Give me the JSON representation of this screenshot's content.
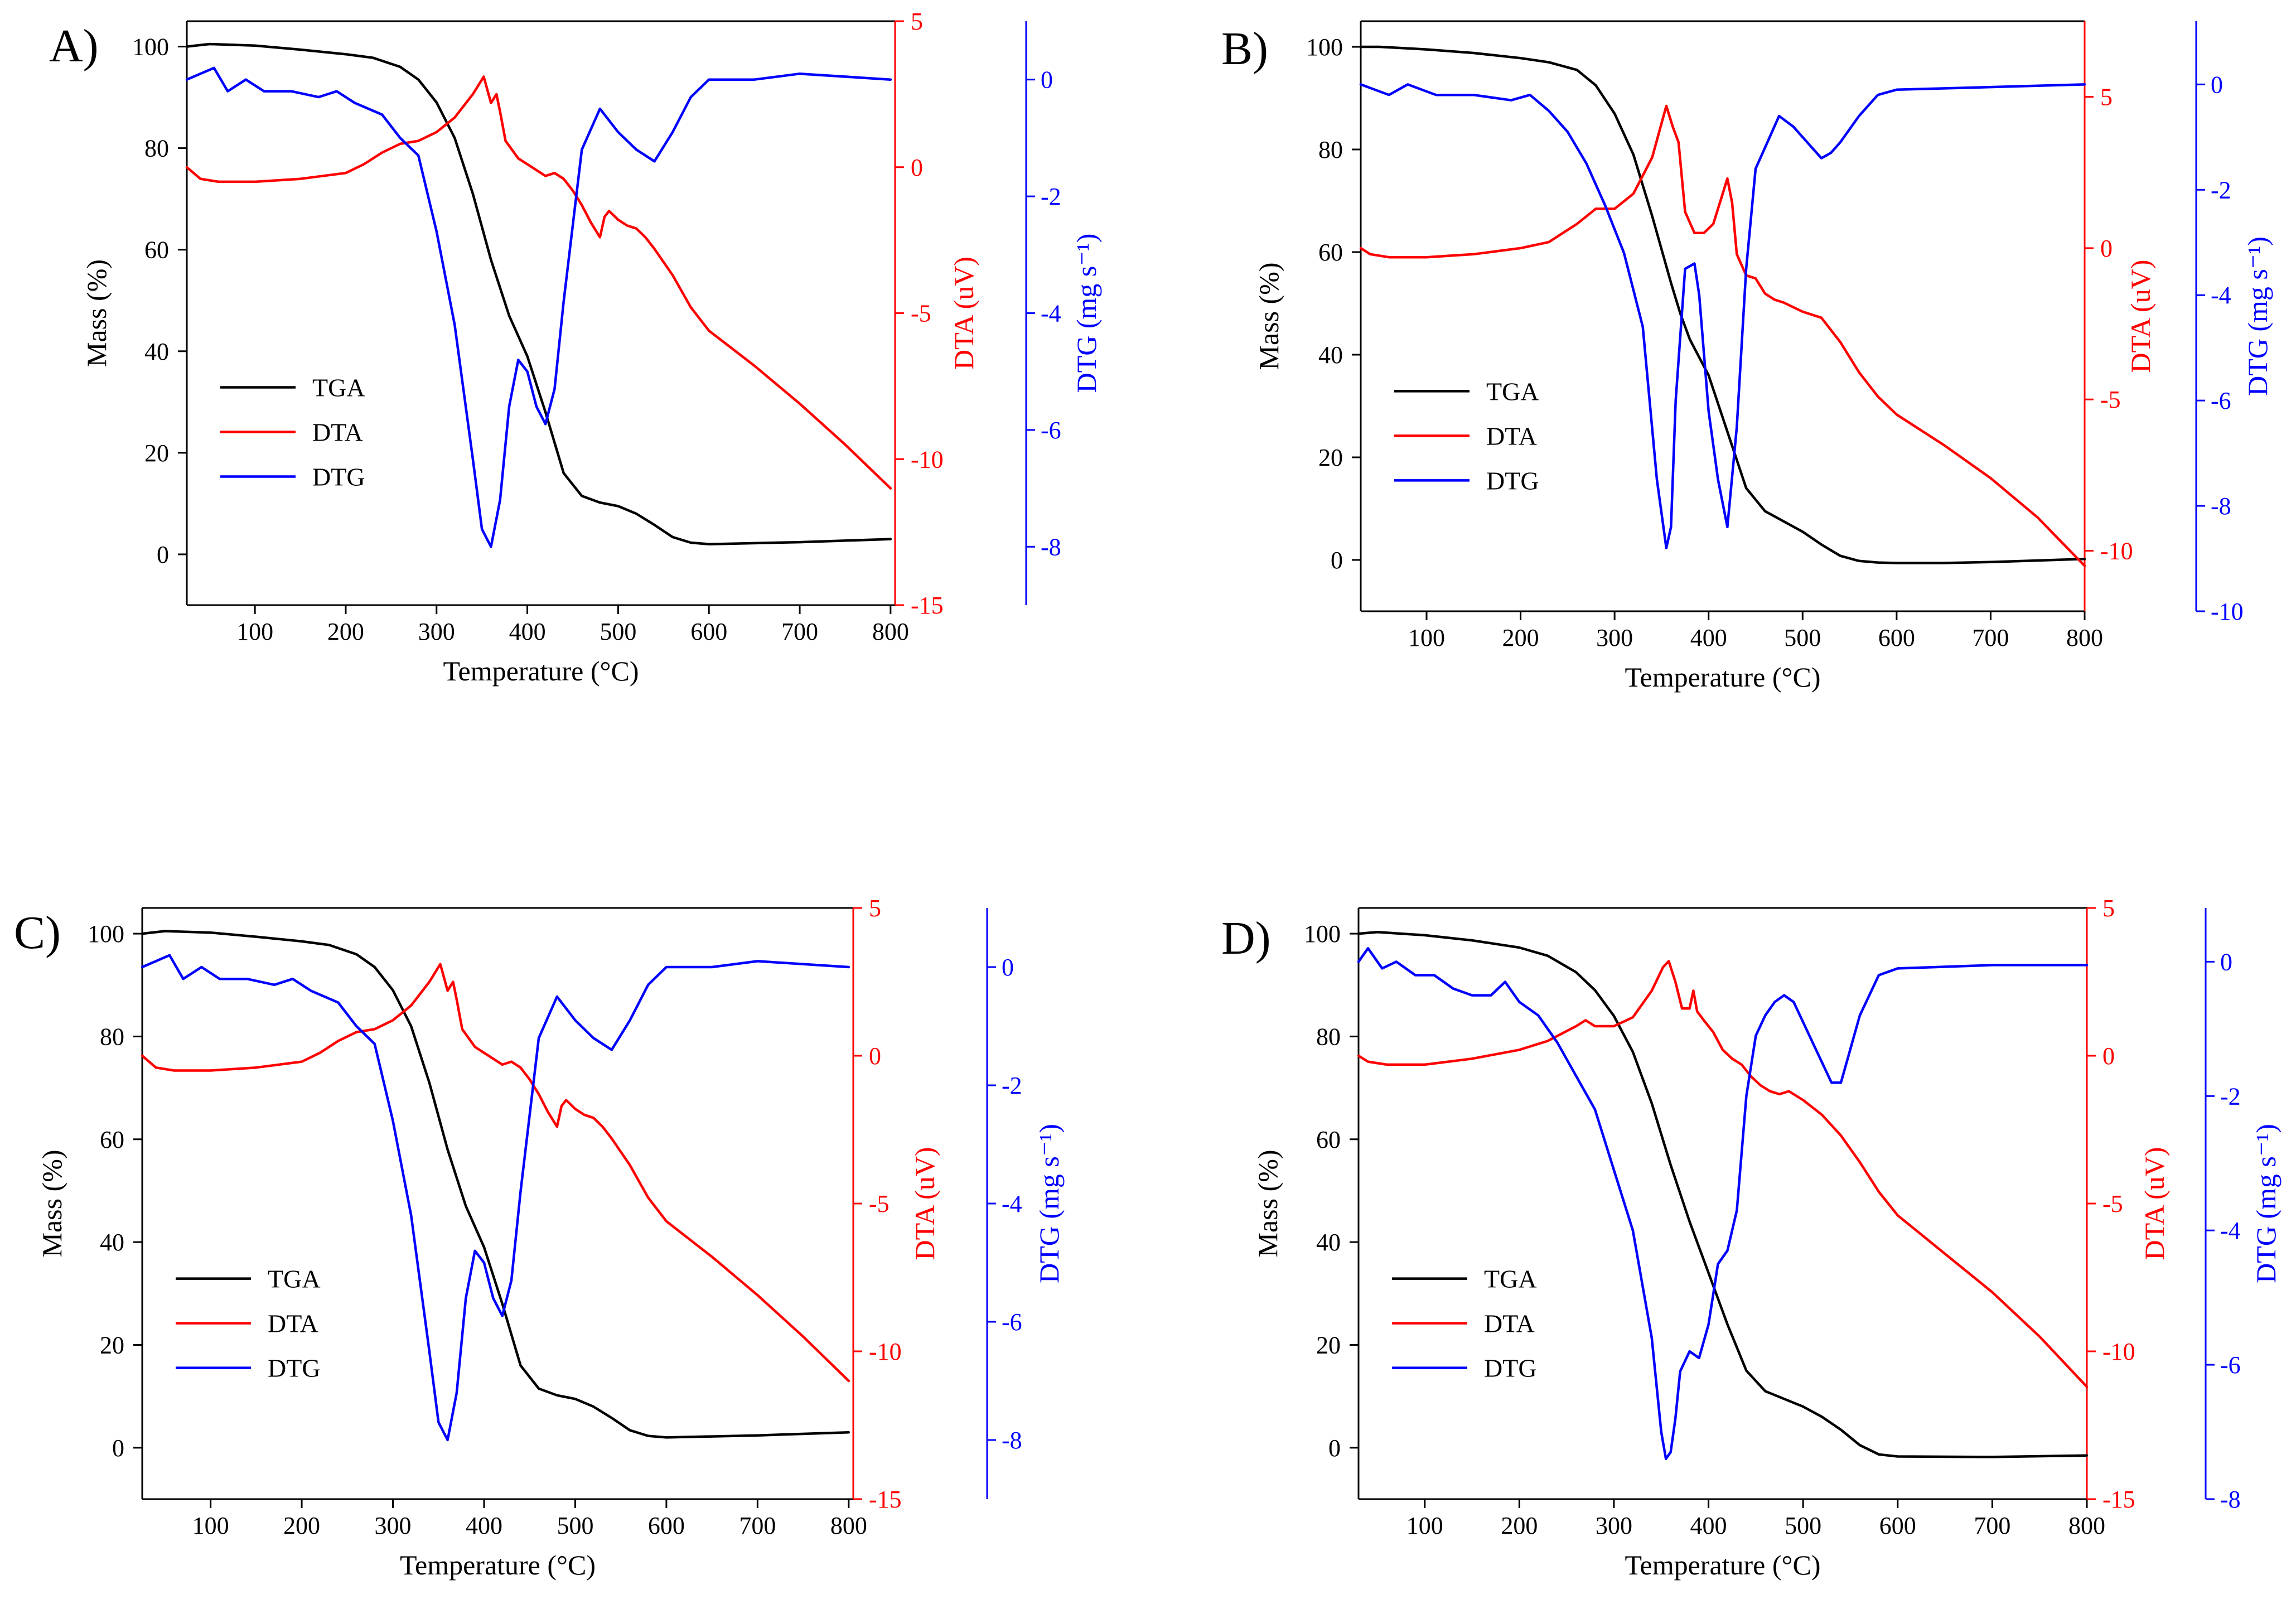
{
  "figure": {
    "colors": {
      "tga": "#000000",
      "dta": "#ff0000",
      "dtg": "#0000ff"
    }
  },
  "chart_data": [
    {
      "type": "line",
      "panel_label": "A)",
      "xlabel": "Temperature (°C)",
      "ylabel_left": "Mass (%)",
      "ylabel_right1": "DTA (uV)",
      "ylabel_right2": "DTG (mg s⁻¹)",
      "xlim": [
        25,
        805
      ],
      "xticks": [
        100,
        200,
        300,
        400,
        500,
        600,
        700,
        800
      ],
      "mass_lim": [
        -10,
        105
      ],
      "mass_ticks": [
        0,
        20,
        40,
        60,
        80,
        100
      ],
      "dta_lim": [
        -15,
        5
      ],
      "dta_ticks": [
        -15,
        -10,
        -5,
        0,
        5
      ],
      "dtg_lim": [
        -9,
        1
      ],
      "dtg_ticks": [
        -8,
        -6,
        -4,
        -2,
        0
      ],
      "legend": [
        "TGA",
        "DTA",
        "DTG"
      ],
      "series": [
        {
          "name": "TGA",
          "axis": "mass",
          "x": [
            25,
            50,
            100,
            150,
            200,
            230,
            260,
            280,
            300,
            320,
            340,
            360,
            380,
            400,
            420,
            440,
            460,
            480,
            500,
            520,
            540,
            560,
            580,
            600,
            700,
            800
          ],
          "y": [
            100,
            100.5,
            100.2,
            99.4,
            98.5,
            97.8,
            96,
            93.5,
            89,
            82,
            71,
            58,
            47,
            39,
            28,
            16,
            11.5,
            10.2,
            9.5,
            8,
            5.8,
            3.4,
            2.3,
            2,
            2.4,
            3
          ]
        },
        {
          "name": "DTA",
          "axis": "dta",
          "x": [
            25,
            40,
            60,
            100,
            150,
            200,
            220,
            240,
            260,
            280,
            300,
            320,
            340,
            352,
            360,
            366,
            370,
            376,
            390,
            410,
            420,
            430,
            440,
            450,
            460,
            470,
            480,
            485,
            490,
            500,
            510,
            520,
            530,
            540,
            560,
            580,
            600,
            650,
            700,
            750,
            800
          ],
          "y": [
            0,
            -0.4,
            -0.5,
            -0.5,
            -0.4,
            -0.2,
            0.1,
            0.5,
            0.8,
            0.9,
            1.2,
            1.7,
            2.5,
            3.1,
            2.2,
            2.5,
            1.9,
            0.9,
            0.3,
            -0.1,
            -0.3,
            -0.2,
            -0.4,
            -0.8,
            -1.3,
            -1.9,
            -2.4,
            -1.7,
            -1.5,
            -1.8,
            -2,
            -2.1,
            -2.4,
            -2.8,
            -3.7,
            -4.8,
            -5.6,
            -6.8,
            -8.1,
            -9.5,
            -11
          ]
        },
        {
          "name": "DTG",
          "axis": "dtg",
          "x": [
            25,
            40,
            55,
            70,
            90,
            110,
            140,
            170,
            190,
            210,
            240,
            260,
            280,
            300,
            320,
            340,
            350,
            360,
            370,
            380,
            390,
            400,
            410,
            420,
            430,
            440,
            460,
            480,
            500,
            520,
            540,
            560,
            580,
            600,
            650,
            700,
            800
          ],
          "y": [
            0,
            0.1,
            0.2,
            -0.2,
            0,
            -0.2,
            -0.2,
            -0.3,
            -0.2,
            -0.4,
            -0.6,
            -1,
            -1.3,
            -2.6,
            -4.2,
            -6.5,
            -7.7,
            -8,
            -7.2,
            -5.6,
            -4.8,
            -5,
            -5.6,
            -5.9,
            -5.3,
            -3.8,
            -1.2,
            -0.5,
            -0.9,
            -1.2,
            -1.4,
            -0.9,
            -0.3,
            0,
            0,
            0.1,
            0
          ]
        }
      ]
    },
    {
      "type": "line",
      "panel_label": "B)",
      "xlabel": "Temperature (°C)",
      "ylabel_left": "Mass (%)",
      "ylabel_right1": "DTA (uV)",
      "ylabel_right2": "DTG (mg s⁻¹)",
      "xlim": [
        30,
        800
      ],
      "xticks": [
        100,
        200,
        300,
        400,
        500,
        600,
        700,
        800
      ],
      "mass_lim": [
        -10,
        105
      ],
      "mass_ticks": [
        0,
        20,
        40,
        60,
        80,
        100
      ],
      "dta_lim": [
        -12,
        7.5
      ],
      "dta_ticks": [
        -10,
        -5,
        0,
        5
      ],
      "dtg_lim": [
        -10,
        1.2
      ],
      "dtg_ticks": [
        -10,
        -8,
        -6,
        -4,
        -2,
        0
      ],
      "legend": [
        "TGA",
        "DTA",
        "DTG"
      ],
      "series": [
        {
          "name": "TGA",
          "axis": "mass",
          "x": [
            30,
            50,
            100,
            150,
            200,
            230,
            260,
            280,
            300,
            320,
            340,
            360,
            370,
            380,
            400,
            420,
            440,
            460,
            480,
            500,
            520,
            540,
            560,
            580,
            600,
            650,
            700,
            800
          ],
          "y": [
            100,
            100,
            99.5,
            98.8,
            97.8,
            97,
            95.5,
            92.5,
            87,
            79,
            67,
            54,
            48,
            43,
            36,
            25,
            14,
            9.5,
            7.5,
            5.5,
            3,
            0.8,
            -0.2,
            -0.5,
            -0.6,
            -0.6,
            -0.4,
            0.2
          ]
        },
        {
          "name": "DTA",
          "axis": "dta",
          "x": [
            30,
            40,
            60,
            100,
            150,
            200,
            230,
            260,
            280,
            300,
            320,
            340,
            355,
            362,
            368,
            375,
            385,
            395,
            405,
            415,
            420,
            425,
            430,
            440,
            450,
            460,
            470,
            480,
            500,
            520,
            540,
            560,
            580,
            600,
            650,
            700,
            750,
            800
          ],
          "y": [
            0,
            -0.2,
            -0.3,
            -0.3,
            -0.2,
            0,
            0.2,
            0.8,
            1.3,
            1.3,
            1.8,
            3,
            4.7,
            4,
            3.5,
            1.2,
            0.5,
            0.5,
            0.8,
            1.8,
            2.3,
            1.5,
            -0.2,
            -0.9,
            -1,
            -1.5,
            -1.7,
            -1.8,
            -2.1,
            -2.3,
            -3.1,
            -4.1,
            -4.9,
            -5.5,
            -6.5,
            -7.6,
            -8.9,
            -10.5
          ]
        },
        {
          "name": "DTG",
          "axis": "dtg",
          "x": [
            30,
            45,
            60,
            80,
            95,
            110,
            150,
            190,
            210,
            230,
            250,
            270,
            290,
            310,
            330,
            345,
            355,
            360,
            365,
            375,
            385,
            390,
            400,
            410,
            420,
            430,
            440,
            450,
            460,
            475,
            490,
            510,
            520,
            530,
            540,
            560,
            580,
            600,
            700,
            800
          ],
          "y": [
            0,
            -0.1,
            -0.2,
            0,
            -0.1,
            -0.2,
            -0.2,
            -0.3,
            -0.2,
            -0.5,
            -0.9,
            -1.5,
            -2.3,
            -3.2,
            -4.6,
            -7.5,
            -8.8,
            -8.4,
            -6,
            -3.5,
            -3.4,
            -4,
            -6.2,
            -7.5,
            -8.4,
            -6.5,
            -3.5,
            -1.6,
            -1.2,
            -0.6,
            -0.8,
            -1.2,
            -1.4,
            -1.3,
            -1.1,
            -0.6,
            -0.2,
            -0.1,
            -0.05,
            0
          ]
        }
      ]
    },
    {
      "type": "line",
      "panel_label": "C)",
      "xlabel": "Temperature (°C)",
      "ylabel_left": "Mass (%)",
      "ylabel_right1": "DTA (uV)",
      "ylabel_right2": "DTG (mg s⁻¹)",
      "xlim": [
        25,
        805
      ],
      "xticks": [
        100,
        200,
        300,
        400,
        500,
        600,
        700,
        800
      ],
      "mass_lim": [
        -10,
        105
      ],
      "mass_ticks": [
        0,
        20,
        40,
        60,
        80,
        100
      ],
      "dta_lim": [
        -15,
        5
      ],
      "dta_ticks": [
        -15,
        -10,
        -5,
        0,
        5
      ],
      "dtg_lim": [
        -9,
        1
      ],
      "dtg_ticks": [
        -8,
        -6,
        -4,
        -2,
        0
      ],
      "legend": [
        "TGA",
        "DTA",
        "DTG"
      ],
      "series": [
        {
          "name": "TGA",
          "axis": "mass",
          "x": [
            25,
            50,
            100,
            150,
            200,
            230,
            260,
            280,
            300,
            320,
            340,
            360,
            380,
            400,
            420,
            440,
            460,
            480,
            500,
            520,
            540,
            560,
            580,
            600,
            700,
            800
          ],
          "y": [
            100,
            100.5,
            100.2,
            99.4,
            98.5,
            97.8,
            96,
            93.5,
            89,
            82,
            71,
            58,
            47,
            39,
            28,
            16,
            11.5,
            10.2,
            9.5,
            8,
            5.8,
            3.4,
            2.3,
            2,
            2.4,
            3
          ]
        },
        {
          "name": "DTA",
          "axis": "dta",
          "x": [
            25,
            40,
            60,
            100,
            150,
            200,
            220,
            240,
            260,
            280,
            300,
            320,
            340,
            352,
            360,
            366,
            370,
            376,
            390,
            410,
            420,
            430,
            440,
            450,
            460,
            470,
            480,
            485,
            490,
            500,
            510,
            520,
            530,
            540,
            560,
            580,
            600,
            650,
            700,
            750,
            800
          ],
          "y": [
            0,
            -0.4,
            -0.5,
            -0.5,
            -0.4,
            -0.2,
            0.1,
            0.5,
            0.8,
            0.9,
            1.2,
            1.7,
            2.5,
            3.1,
            2.2,
            2.5,
            1.9,
            0.9,
            0.3,
            -0.1,
            -0.3,
            -0.2,
            -0.4,
            -0.8,
            -1.3,
            -1.9,
            -2.4,
            -1.7,
            -1.5,
            -1.8,
            -2,
            -2.1,
            -2.4,
            -2.8,
            -3.7,
            -4.8,
            -5.6,
            -6.8,
            -8.1,
            -9.5,
            -11
          ]
        },
        {
          "name": "DTG",
          "axis": "dtg",
          "x": [
            25,
            40,
            55,
            70,
            90,
            110,
            140,
            170,
            190,
            210,
            240,
            260,
            280,
            300,
            320,
            340,
            350,
            360,
            370,
            380,
            390,
            400,
            410,
            420,
            430,
            440,
            460,
            480,
            500,
            520,
            540,
            560,
            580,
            600,
            650,
            700,
            800
          ],
          "y": [
            0,
            0.1,
            0.2,
            -0.2,
            0,
            -0.2,
            -0.2,
            -0.3,
            -0.2,
            -0.4,
            -0.6,
            -1,
            -1.3,
            -2.6,
            -4.2,
            -6.5,
            -7.7,
            -8,
            -7.2,
            -5.6,
            -4.8,
            -5,
            -5.6,
            -5.9,
            -5.3,
            -3.8,
            -1.2,
            -0.5,
            -0.9,
            -1.2,
            -1.4,
            -0.9,
            -0.3,
            0,
            0,
            0.1,
            0
          ]
        }
      ]
    },
    {
      "type": "line",
      "panel_label": "D)",
      "xlabel": "Temperature (°C)",
      "ylabel_left": "Mass (%)",
      "ylabel_right1": "DTA (uV)",
      "ylabel_right2": "DTG (mg s⁻¹)",
      "xlim": [
        30,
        800
      ],
      "xticks": [
        100,
        200,
        300,
        400,
        500,
        600,
        700,
        800
      ],
      "mass_lim": [
        -10,
        105
      ],
      "mass_ticks": [
        0,
        20,
        40,
        60,
        80,
        100
      ],
      "dta_lim": [
        -15,
        5
      ],
      "dta_ticks": [
        -15,
        -10,
        -5,
        0,
        5
      ],
      "dtg_lim": [
        -8,
        0.8
      ],
      "dtg_ticks": [
        -8,
        -6,
        -4,
        -2,
        0
      ],
      "legend": [
        "TGA",
        "DTA",
        "DTG"
      ],
      "series": [
        {
          "name": "TGA",
          "axis": "mass",
          "x": [
            30,
            50,
            100,
            150,
            200,
            230,
            260,
            280,
            300,
            320,
            340,
            360,
            380,
            400,
            420,
            440,
            460,
            480,
            500,
            520,
            540,
            560,
            580,
            600,
            700,
            800
          ],
          "y": [
            100,
            100.3,
            99.7,
            98.7,
            97.3,
            95.7,
            92.5,
            89,
            84,
            77,
            67,
            55,
            44,
            34,
            24,
            15,
            11,
            9.5,
            8,
            6,
            3.5,
            0.5,
            -1.3,
            -1.7,
            -1.8,
            -1.5
          ]
        },
        {
          "name": "DTA",
          "axis": "dta",
          "x": [
            30,
            40,
            60,
            100,
            150,
            200,
            230,
            260,
            270,
            280,
            300,
            320,
            340,
            352,
            358,
            365,
            372,
            380,
            384,
            388,
            395,
            405,
            415,
            425,
            435,
            445,
            455,
            465,
            475,
            485,
            500,
            520,
            540,
            560,
            580,
            600,
            650,
            700,
            750,
            800
          ],
          "y": [
            0,
            -0.2,
            -0.3,
            -0.3,
            -0.1,
            0.2,
            0.5,
            1,
            1.2,
            1,
            1,
            1.3,
            2.2,
            3,
            3.2,
            2.5,
            1.6,
            1.6,
            2.2,
            1.5,
            1.2,
            0.8,
            0.2,
            -0.1,
            -0.3,
            -0.7,
            -1,
            -1.2,
            -1.3,
            -1.2,
            -1.5,
            -2,
            -2.7,
            -3.6,
            -4.6,
            -5.4,
            -6.7,
            -8,
            -9.5,
            -11.2
          ]
        },
        {
          "name": "DTG",
          "axis": "dtg",
          "x": [
            30,
            40,
            55,
            70,
            90,
            110,
            130,
            150,
            170,
            185,
            200,
            220,
            240,
            260,
            280,
            300,
            320,
            340,
            350,
            355,
            360,
            365,
            370,
            380,
            390,
            400,
            410,
            420,
            430,
            440,
            450,
            460,
            470,
            480,
            490,
            500,
            510,
            520,
            530,
            540,
            560,
            580,
            600,
            700,
            800
          ],
          "y": [
            0,
            0.2,
            -0.1,
            0,
            -0.2,
            -0.2,
            -0.4,
            -0.5,
            -0.5,
            -0.3,
            -0.6,
            -0.8,
            -1.2,
            -1.7,
            -2.2,
            -3.1,
            -4,
            -5.6,
            -7,
            -7.4,
            -7.3,
            -6.8,
            -6.1,
            -5.8,
            -5.9,
            -5.4,
            -4.5,
            -4.3,
            -3.7,
            -2,
            -1.1,
            -0.8,
            -0.6,
            -0.5,
            -0.6,
            -0.9,
            -1.2,
            -1.5,
            -1.8,
            -1.8,
            -0.8,
            -0.2,
            -0.1,
            -0.05,
            -0.05
          ]
        }
      ]
    }
  ]
}
